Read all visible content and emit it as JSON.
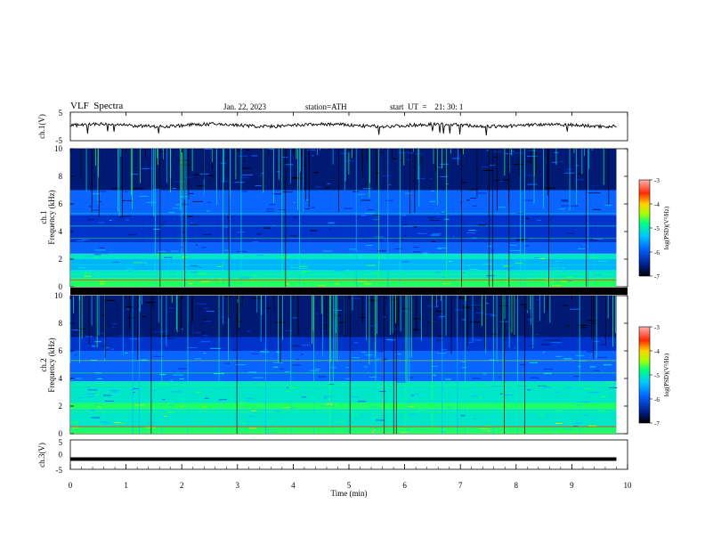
{
  "header": {
    "title": "VLF  Spectra",
    "date": "Jan. 22, 2023",
    "station": "station=ATH",
    "start": "start  UT  =    21: 30: 1"
  },
  "colorbar": {
    "label": "log(PSD)(V²/Hz)",
    "ticks": [
      -3,
      -4,
      -5,
      -6,
      -7
    ],
    "colors": [
      "#000000",
      "#00208c",
      "#0064ff",
      "#00c8ff",
      "#00ff80",
      "#aaff00",
      "#ffd200",
      "#ff2a00",
      "#ffb0b0"
    ]
  },
  "chart_data": [
    {
      "type": "line",
      "panel": "ch1-waveform",
      "ylabel": "ch.1(V)",
      "ylim": [
        -5,
        5
      ],
      "yticks": [
        5,
        -5
      ],
      "xlim": [
        0,
        10
      ],
      "x_unit": "min",
      "baseline_v": 0.4,
      "note_values": "noisy trace near 0.4 V between 0 and 9.8 min"
    },
    {
      "type": "heatmap",
      "panel": "ch1-spectrogram",
      "ylabel": "ch.1\nFrequency  (kHz)",
      "ylim": [
        0,
        10
      ],
      "yticks": [
        10,
        8,
        6,
        4,
        2,
        0
      ],
      "xlim": [
        0,
        10
      ],
      "data_xmax": 9.8,
      "zlim": [
        -7,
        -3
      ],
      "bands_khz": [
        {
          "f0": 0.0,
          "f1": 0.6,
          "z": -4.6
        },
        {
          "f0": 0.6,
          "f1": 1.2,
          "z": -5.0
        },
        {
          "f0": 1.2,
          "f1": 2.0,
          "z": -5.3
        },
        {
          "f0": 2.0,
          "f1": 2.4,
          "z": -5.0
        },
        {
          "f0": 2.4,
          "f1": 3.2,
          "z": -5.8
        },
        {
          "f0": 3.2,
          "f1": 5.2,
          "z": -6.2
        },
        {
          "f0": 5.2,
          "f1": 7.0,
          "z": -6.0
        },
        {
          "f0": 7.0,
          "f1": 10.0,
          "z": -6.4
        }
      ]
    },
    {
      "type": "heatmap",
      "panel": "ch2-spectrogram",
      "ylabel": "ch.2\nFrequency  (kHz)",
      "ylim": [
        0,
        10
      ],
      "yticks": [
        10,
        8,
        6,
        4,
        2,
        0
      ],
      "xlim": [
        0,
        10
      ],
      "data_xmax": 9.8,
      "zlim": [
        -7,
        -3
      ],
      "bands_khz": [
        {
          "f0": 0.0,
          "f1": 0.5,
          "z": -4.5
        },
        {
          "f0": 0.5,
          "f1": 1.8,
          "z": -5.0
        },
        {
          "f0": 1.8,
          "f1": 2.2,
          "z": -4.6
        },
        {
          "f0": 2.2,
          "f1": 3.8,
          "z": -5.2
        },
        {
          "f0": 3.8,
          "f1": 6.0,
          "z": -5.7
        },
        {
          "f0": 6.0,
          "f1": 7.0,
          "z": -6.1
        },
        {
          "f0": 7.0,
          "f1": 10.0,
          "z": -6.5
        }
      ]
    },
    {
      "type": "line",
      "panel": "ch3-waveform",
      "ylabel": "ch.3(V)",
      "ylim": [
        -5,
        5
      ],
      "yticks": [
        5,
        0,
        -5
      ],
      "xlim": [
        0,
        10
      ],
      "xticks": [
        0,
        1,
        2,
        3,
        4,
        5,
        6,
        7,
        8,
        9,
        10
      ],
      "xlabel": "Time  (min)",
      "x": [
        0,
        9.8
      ],
      "y": [
        -1.5,
        -1.5
      ]
    }
  ]
}
